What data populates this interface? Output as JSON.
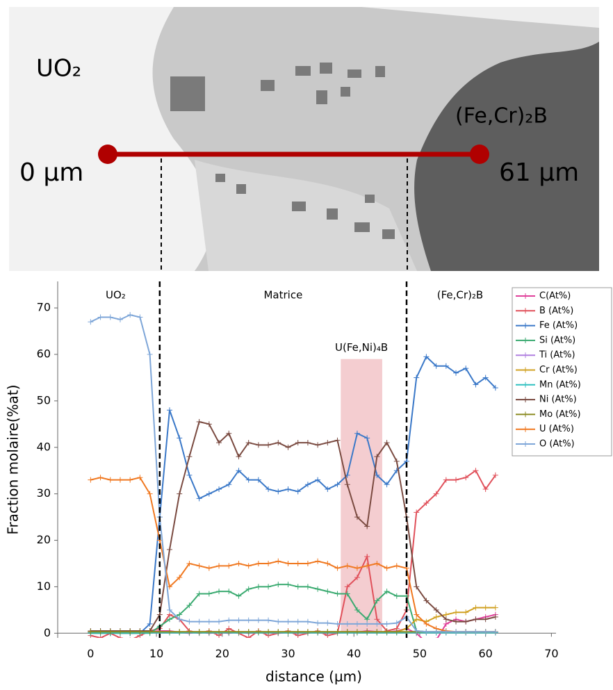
{
  "micrograph": {
    "left_phase": "UO₂",
    "right_phase": "(Fe,Cr)₂B",
    "start": "0 µm",
    "end": "61 µm"
  },
  "chart_data": {
    "type": "line",
    "xlabel": "distance (µm)",
    "ylabel": "Fraction molaire(%at)",
    "region_labels": [
      "UO₂",
      "Matrice",
      "(Fe,Cr)₂B"
    ],
    "boundaries": [
      10.5,
      48
    ],
    "highlight": {
      "label": "U(Fe,Ni)₄B",
      "xrange": [
        38,
        44.3
      ],
      "top": 59
    },
    "xlim": [
      -5,
      70.7
    ],
    "ylim": [
      -1,
      75.7
    ],
    "xticks": [
      0,
      10,
      20,
      30,
      40,
      50,
      60,
      70
    ],
    "yticks": [
      0,
      10,
      20,
      30,
      40,
      50,
      60,
      70
    ],
    "x": [
      0,
      1.5,
      3,
      4.5,
      6,
      7.5,
      9,
      10.5,
      12,
      13.5,
      15,
      16.5,
      18,
      19.5,
      21,
      22.5,
      24,
      25.5,
      27,
      28.5,
      30,
      31.5,
      33,
      34.5,
      36,
      37.5,
      39,
      40.5,
      42,
      43.5,
      45,
      46.5,
      48,
      49.5,
      51,
      52.5,
      54,
      55.5,
      57,
      58.5,
      60,
      61.5
    ],
    "series": [
      {
        "name": "C(At%)",
        "color": "#e0409a",
        "values": [
          0,
          0.3,
          0,
          0.2,
          0,
          0.1,
          0.3,
          0.5,
          0.5,
          0.2,
          0,
          0.3,
          0,
          0.2,
          0,
          0.3,
          0,
          0.2,
          0.1,
          0,
          0.2,
          0,
          0.3,
          0.1,
          0,
          0.2,
          0.3,
          0.2,
          0.5,
          0.3,
          0.2,
          0.5,
          1,
          0,
          -2,
          -1.5,
          2,
          3,
          2.5,
          3,
          3.5,
          4
        ]
      },
      {
        "name": "B (At%)",
        "color": "#e0505a",
        "values": [
          -0.5,
          -1,
          0,
          -1,
          -1.5,
          -0.5,
          0.5,
          1,
          4,
          3,
          0.5,
          0,
          0.5,
          -0.5,
          1,
          0,
          -1,
          0.5,
          -0.5,
          0,
          0.5,
          -0.5,
          0,
          0.5,
          -0.5,
          0,
          10,
          12,
          16.5,
          3,
          0.5,
          1,
          5,
          26,
          28,
          30,
          33,
          33,
          33.5,
          35,
          31,
          34
        ]
      },
      {
        "name": "Fe  (At%)",
        "color": "#3a78c8",
        "values": [
          0,
          0,
          0,
          0,
          0,
          0,
          2,
          25,
          48,
          42,
          34,
          29,
          30,
          31,
          32,
          35,
          33,
          33,
          31,
          30.5,
          31,
          30.5,
          32,
          33,
          31,
          32,
          34,
          43,
          42,
          34,
          32,
          35,
          37,
          55,
          59.5,
          57.5,
          57.5,
          56,
          57,
          53.5,
          55,
          52.8
        ]
      },
      {
        "name": "Si (At%)",
        "color": "#3aaa70",
        "values": [
          0,
          0,
          0,
          0,
          0,
          0,
          0,
          1.5,
          3,
          4,
          6,
          8.5,
          8.5,
          9,
          9,
          8,
          9.5,
          10,
          10,
          10.5,
          10.5,
          10,
          10,
          9.5,
          9,
          8.5,
          8.5,
          5,
          3,
          7,
          9,
          8,
          8,
          0.5,
          0.3,
          0.3,
          0.3,
          0.3,
          0.3,
          0.3,
          0.3,
          0.3
        ]
      },
      {
        "name": "Ti (At%)",
        "color": "#b080e0",
        "values": [
          0.2,
          0.2,
          0.2,
          0.2,
          0.2,
          0.2,
          0.2,
          0.2,
          0.2,
          0.2,
          0.2,
          0.2,
          0.2,
          0.2,
          0.2,
          0.2,
          0.2,
          0.2,
          0.2,
          0.2,
          0.2,
          0.2,
          0.2,
          0.2,
          0.2,
          0.2,
          0.2,
          0.2,
          0.2,
          0.2,
          0.2,
          0.2,
          0.2,
          0.2,
          0.2,
          0.2,
          0.2,
          0.2,
          0.2,
          0.2,
          0.2,
          0.2
        ]
      },
      {
        "name": "Cr (At%)",
        "color": "#d0a020",
        "values": [
          0.3,
          0.3,
          0.3,
          0.3,
          0.3,
          0.3,
          0.3,
          0.3,
          0.3,
          0.3,
          0.3,
          0.3,
          0.3,
          0.3,
          0.3,
          0.3,
          0.3,
          0.3,
          0.3,
          0.3,
          0.3,
          0.3,
          0.3,
          0.3,
          0.3,
          0.3,
          0.3,
          0.3,
          0.3,
          0.3,
          0.3,
          0.3,
          1,
          3,
          2.5,
          3.5,
          4,
          4.5,
          4.5,
          5.5,
          5.5,
          5.5
        ]
      },
      {
        "name": "Mn (At%)",
        "color": "#30c0c0",
        "values": [
          0.1,
          0.1,
          0.1,
          0.1,
          0.1,
          0.1,
          0.1,
          0.1,
          0.1,
          0.1,
          0.1,
          0.1,
          0.1,
          0.1,
          0.1,
          0.1,
          0.1,
          0.1,
          0.1,
          0.1,
          0.1,
          0.1,
          0.1,
          0.1,
          0.1,
          0.1,
          0.1,
          0.1,
          0.1,
          0.1,
          0.1,
          0.1,
          0.1,
          0.1,
          0.1,
          0.1,
          0.1,
          0.1,
          0.1,
          0.1,
          0.1,
          0.1
        ]
      },
      {
        "name": "Ni (At%)",
        "color": "#7a4a40",
        "values": [
          0.5,
          0.5,
          0.5,
          0.5,
          0.5,
          0.5,
          0.5,
          4,
          18,
          30,
          38,
          45.5,
          45,
          41,
          43,
          38,
          41,
          40.5,
          40.5,
          41,
          40,
          41,
          41,
          40.5,
          41,
          41.5,
          32,
          25,
          23,
          38,
          41,
          37,
          25,
          10,
          7,
          5,
          3,
          2.5,
          2.5,
          3,
          3,
          3.5
        ]
      },
      {
        "name": "Mo (At%)",
        "color": "#8a8a20",
        "values": [
          0.3,
          0.3,
          0.3,
          0.3,
          0.3,
          0.3,
          0.3,
          0.3,
          0.3,
          0.3,
          0.3,
          0.3,
          0.3,
          0.3,
          0.3,
          0.3,
          0.3,
          0.3,
          0.3,
          0.3,
          0.3,
          0.3,
          0.3,
          0.3,
          0.3,
          0.3,
          0.3,
          0.3,
          0.3,
          0.3,
          0.3,
          0.3,
          0.3,
          0.3,
          0.3,
          0.3,
          0.3,
          0.3,
          0.3,
          0.3,
          0.3,
          0.3
        ]
      },
      {
        "name": "U (At%)",
        "color": "#f07820",
        "values": [
          33,
          33.5,
          33,
          33,
          33,
          33.5,
          30,
          20,
          10,
          12,
          15,
          14.5,
          14,
          14.5,
          14.5,
          15,
          14.5,
          15,
          15,
          15.5,
          15,
          15,
          15,
          15.5,
          15,
          14,
          14.5,
          14,
          14.5,
          15,
          14,
          14.5,
          14,
          4,
          2,
          1,
          0.5,
          0.3,
          0.3,
          0.3,
          0.3,
          0.3
        ]
      },
      {
        "name": "O (At%)",
        "color": "#7ea6d8",
        "values": [
          67,
          68,
          68,
          67.5,
          68.5,
          68,
          60,
          25,
          5,
          3,
          2.5,
          2.5,
          2.5,
          2.5,
          2.8,
          2.8,
          2.8,
          2.8,
          2.8,
          2.5,
          2.5,
          2.5,
          2.5,
          2.2,
          2.2,
          2,
          2,
          2,
          2,
          2,
          2,
          2.2,
          3.5,
          0.5,
          0.3,
          0.3,
          0.3,
          0.3,
          0.3,
          0.3,
          0.3,
          0.3
        ]
      }
    ]
  }
}
